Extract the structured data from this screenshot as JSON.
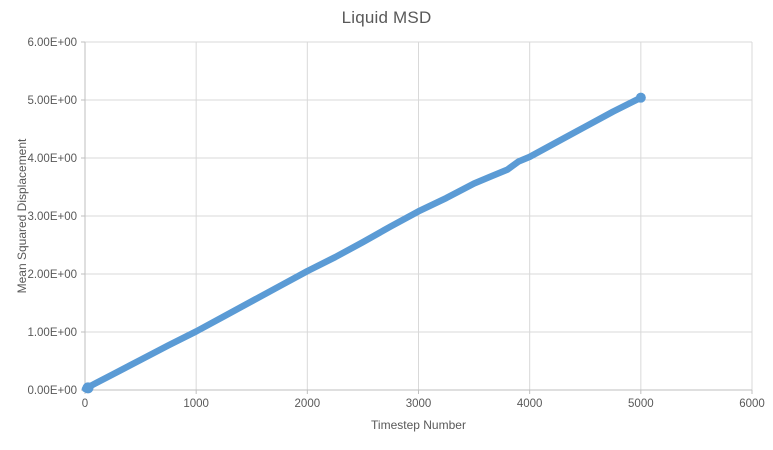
{
  "chart": {
    "title": "Liquid MSD",
    "x_axis_title": "Timestep Number",
    "y_axis_title": "Mean Squared Displacement"
  },
  "style": {
    "series_color": "#5B9BD5",
    "gridline_color": "#D9D9D9",
    "axis_line_color": "#BFBFBF",
    "text_color": "#595959",
    "background_color": "#FFFFFF"
  },
  "chart_data": {
    "type": "scatter",
    "title": "Liquid MSD",
    "xlabel": "Timestep Number",
    "ylabel": "Mean Squared Displacement",
    "xlim": [
      0,
      6000
    ],
    "ylim": [
      0,
      6
    ],
    "x_ticks": [
      0,
      1000,
      2000,
      3000,
      4000,
      5000,
      6000
    ],
    "y_ticks": [
      0,
      1,
      2,
      3,
      4,
      5,
      6
    ],
    "y_tick_labels": [
      "0.00E+00",
      "1.00E+00",
      "2.00E+00",
      "3.00E+00",
      "4.00E+00",
      "5.00E+00",
      "6.00E+00"
    ],
    "grid": true,
    "legend": "none",
    "series": [
      {
        "name": "Liquid MSD",
        "color": "#5B9BD5",
        "appearance": "dense overlapping round markers forming one thick nearly-linear line",
        "points": [
          [
            0,
            0.02
          ],
          [
            100,
            0.12
          ],
          [
            250,
            0.27
          ],
          [
            500,
            0.52
          ],
          [
            750,
            0.77
          ],
          [
            1000,
            1.01
          ],
          [
            1250,
            1.27
          ],
          [
            1500,
            1.53
          ],
          [
            1750,
            1.79
          ],
          [
            2000,
            2.05
          ],
          [
            2250,
            2.29
          ],
          [
            2500,
            2.55
          ],
          [
            2750,
            2.82
          ],
          [
            3000,
            3.08
          ],
          [
            3250,
            3.31
          ],
          [
            3500,
            3.56
          ],
          [
            3650,
            3.68
          ],
          [
            3800,
            3.8
          ],
          [
            3900,
            3.94
          ],
          [
            4000,
            4.02
          ],
          [
            4250,
            4.28
          ],
          [
            4500,
            4.54
          ],
          [
            4750,
            4.8
          ],
          [
            5000,
            5.04
          ]
        ]
      }
    ]
  }
}
